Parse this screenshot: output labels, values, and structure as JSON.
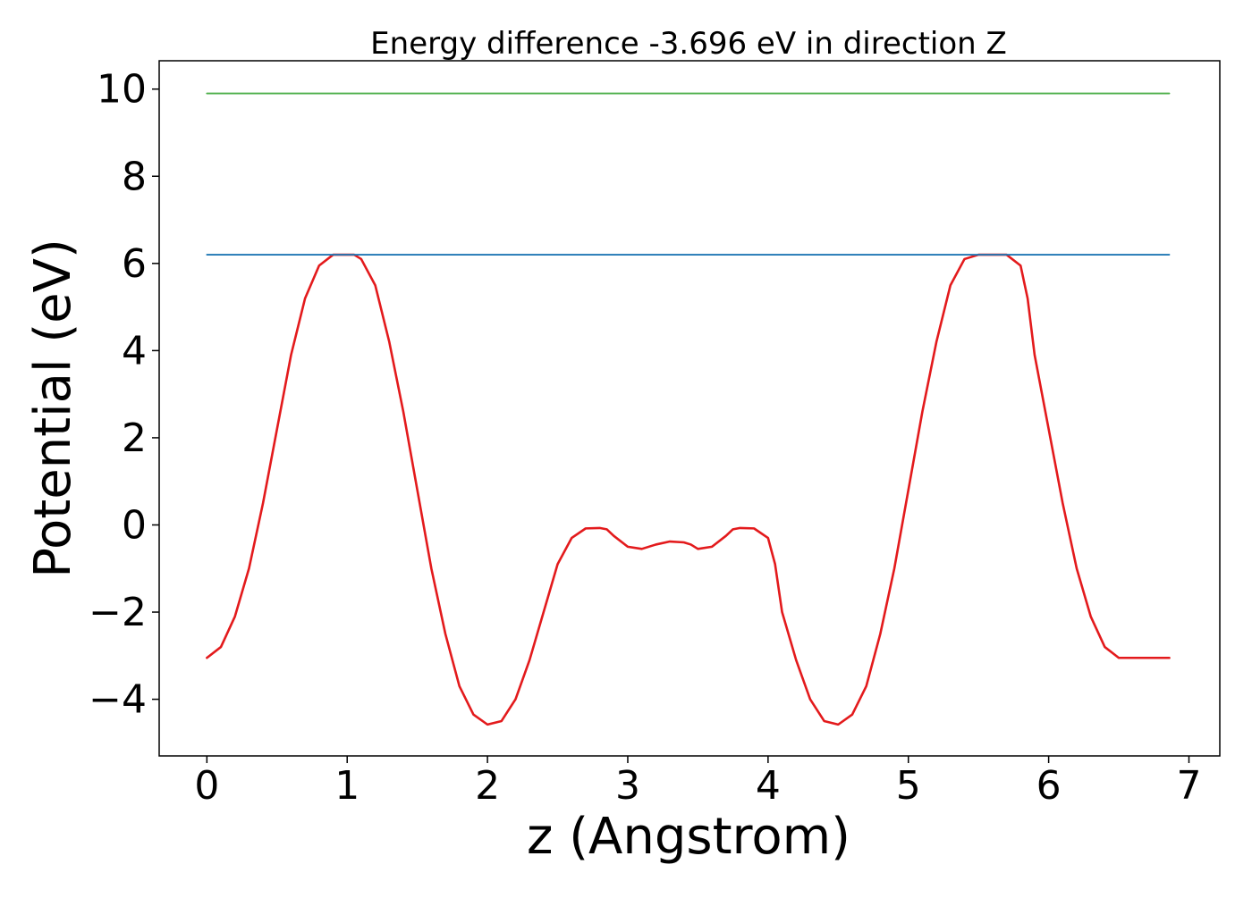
{
  "chart_data": {
    "type": "line",
    "title": "Energy difference -3.696 eV in direction Z",
    "xlabel": "z (Angstrom)",
    "ylabel": "Potential (eV)",
    "xlim": [
      -0.34,
      7.22
    ],
    "ylim": [
      -5.3,
      10.65
    ],
    "xticks": [
      0,
      1,
      2,
      3,
      4,
      5,
      6,
      7
    ],
    "xtick_labels": [
      "0",
      "1",
      "2",
      "3",
      "4",
      "5",
      "6",
      "7"
    ],
    "yticks": [
      -4,
      -2,
      0,
      2,
      4,
      6,
      8,
      10
    ],
    "ytick_labels": [
      "−4",
      "−2",
      "0",
      "2",
      "4",
      "6",
      "8",
      "10"
    ],
    "grid": false,
    "series": [
      {
        "color": "#e31a1c",
        "x": [
          0,
          0.1,
          0.2,
          0.3,
          0.4,
          0.5,
          0.6,
          0.7,
          0.8,
          0.9,
          1.0,
          1.05,
          1.1,
          1.2,
          1.3,
          1.4,
          1.5,
          1.6,
          1.7,
          1.8,
          1.9,
          2.0,
          2.1,
          2.2,
          2.3,
          2.4,
          2.5,
          2.6,
          2.7,
          2.8,
          2.85,
          2.9,
          3.0,
          3.1,
          3.2,
          3.3,
          3.4,
          3.45,
          3.5,
          3.6,
          3.7,
          3.75,
          3.8,
          3.9,
          4.0,
          4.05,
          4.1,
          4.2,
          4.3,
          4.4,
          4.5,
          4.6,
          4.7,
          4.8,
          4.9,
          5.0,
          5.1,
          5.2,
          5.3,
          5.4,
          5.5,
          5.6,
          5.7,
          5.8,
          5.85,
          5.9,
          6.0,
          6.1,
          6.2,
          6.3,
          6.4,
          6.5,
          6.6,
          6.7,
          6.8,
          6.86
        ],
        "values": [
          -3.05,
          -2.8,
          -2.1,
          -1.0,
          0.5,
          2.2,
          3.9,
          5.2,
          5.95,
          6.2,
          6.2,
          6.2,
          6.1,
          5.5,
          4.2,
          2.6,
          0.8,
          -1.0,
          -2.5,
          -3.7,
          -4.35,
          -4.58,
          -4.5,
          -4.0,
          -3.1,
          -2.0,
          -0.9,
          -0.3,
          -0.08,
          -0.07,
          -0.1,
          -0.25,
          -0.5,
          -0.55,
          -0.45,
          -0.38,
          -0.4,
          -0.45,
          -0.55,
          -0.5,
          -0.25,
          -0.1,
          -0.07,
          -0.08,
          -0.3,
          -0.9,
          -2.0,
          -3.1,
          -4.0,
          -4.5,
          -4.58,
          -4.35,
          -3.7,
          -2.5,
          -1.0,
          0.8,
          2.6,
          4.2,
          5.5,
          6.1,
          6.2,
          6.2,
          6.2,
          5.95,
          5.2,
          3.9,
          2.2,
          0.5,
          -1.0,
          -2.1,
          -2.8,
          -3.05,
          -3.05,
          -3.05,
          -3.05,
          -3.05
        ]
      },
      {
        "color": "#1f77b4",
        "x": [
          0,
          6.86
        ],
        "values": [
          6.2,
          6.2
        ]
      },
      {
        "color": "#4daf4a",
        "x": [
          0,
          6.86
        ],
        "values": [
          9.9,
          9.9
        ]
      }
    ]
  }
}
